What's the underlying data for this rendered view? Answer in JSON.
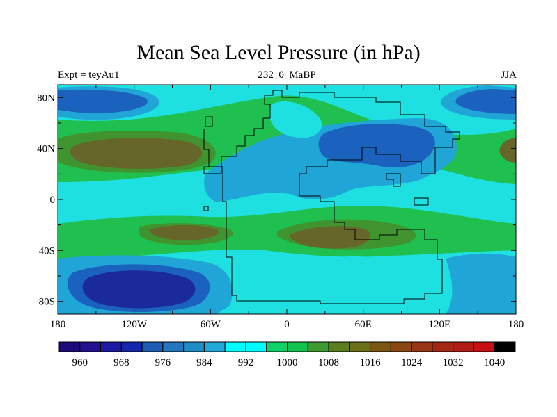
{
  "chart_data": {
    "type": "heatmap",
    "title": "Mean Sea Level Pressure (in hPa)",
    "left_label": "Expt = teyAu1",
    "center_label": "232_0_MaBP",
    "right_label": "JJA",
    "x_ticks": [
      {
        "value": -180,
        "label": "180"
      },
      {
        "value": -120,
        "label": "120W"
      },
      {
        "value": -60,
        "label": "60W"
      },
      {
        "value": 0,
        "label": "0"
      },
      {
        "value": 60,
        "label": "60E"
      },
      {
        "value": 120,
        "label": "120E"
      },
      {
        "value": 180,
        "label": "180"
      }
    ],
    "y_ticks": [
      {
        "value": 80,
        "label": "80N"
      },
      {
        "value": 40,
        "label": "40N"
      },
      {
        "value": 0,
        "label": "0"
      },
      {
        "value": -40,
        "label": "40S"
      },
      {
        "value": -80,
        "label": "80S"
      }
    ],
    "xlim": [
      -180,
      180
    ],
    "ylim": [
      -90,
      90
    ],
    "colorbar": {
      "levels": [
        956,
        960,
        964,
        968,
        972,
        976,
        980,
        984,
        988,
        992,
        996,
        1000,
        1004,
        1008,
        1012,
        1016,
        1020,
        1024,
        1028,
        1032,
        1036,
        1040,
        1044
      ],
      "colors": [
        "#1e0c7d",
        "#21108f",
        "#1f1aa3",
        "#1727ad",
        "#1f5db5",
        "#2277c0",
        "#1f8cc8",
        "#22a9d8",
        "#00ffff",
        "#00ffff",
        "#10d06a",
        "#12c34e",
        "#3d9a2e",
        "#5b7d1e",
        "#6a6f18",
        "#7a5814",
        "#8a4712",
        "#983513",
        "#a52814",
        "#b21c16",
        "#c80f12"
      ],
      "labels": [
        {
          "value": 960,
          "label": "960"
        },
        {
          "value": 968,
          "label": "968"
        },
        {
          "value": 976,
          "label": "976"
        },
        {
          "value": 984,
          "label": "984"
        },
        {
          "value": 992,
          "label": "992"
        },
        {
          "value": 1000,
          "label": "1000"
        },
        {
          "value": 1008,
          "label": "1008"
        },
        {
          "value": 1016,
          "label": "1016"
        },
        {
          "value": 1024,
          "label": "1024"
        },
        {
          "value": 1032,
          "label": "1032"
        },
        {
          "value": 1040,
          "label": "1040"
        }
      ]
    },
    "field_colors": {
      "deep_low": "#1a2a9a",
      "low": "#1b62be",
      "mid_low": "#1fa6d6",
      "background": "#1ee0e0",
      "high": "#20c050",
      "upper_high": "#3f9430",
      "peak": "#66652a",
      "coast": "#000000"
    },
    "pressure_centers": [
      {
        "type": "high",
        "lon": -125,
        "lat": 40,
        "value": 1018
      },
      {
        "type": "high",
        "lon": 25,
        "lat": -32,
        "value": 1016
      },
      {
        "type": "high",
        "lon": -120,
        "lat": -25,
        "value": 1014
      },
      {
        "type": "low",
        "lon": -110,
        "lat": -72,
        "value": 966
      },
      {
        "type": "low",
        "lon": -135,
        "lat": 77,
        "value": 982
      },
      {
        "type": "low",
        "lon": 160,
        "lat": 77,
        "value": 982
      },
      {
        "type": "low",
        "lon": 75,
        "lat": 45,
        "value": 986
      }
    ]
  }
}
